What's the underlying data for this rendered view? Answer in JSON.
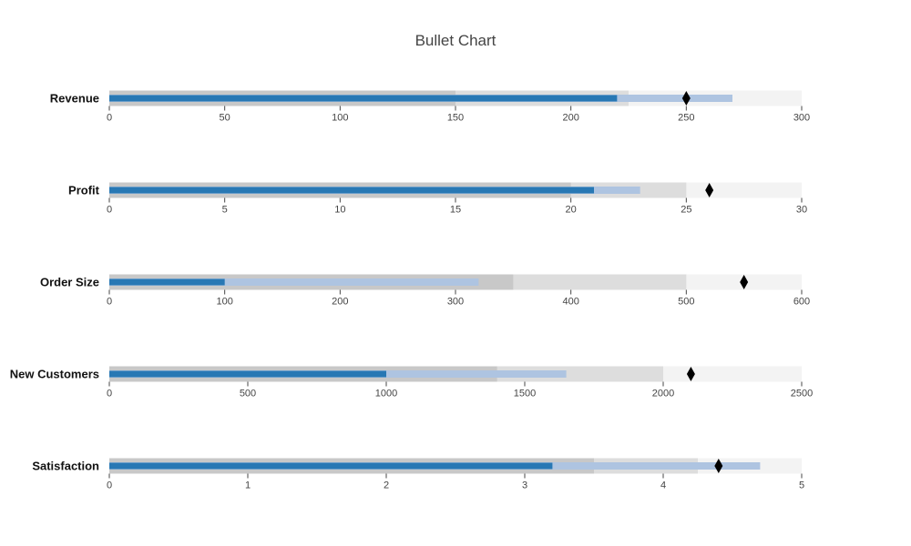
{
  "chart_data": {
    "type": "bullet",
    "title": "Bullet Chart",
    "colors": {
      "range_1": "#c8c8c8",
      "range_2": "#dddddd",
      "range_3": "#f3f3f3",
      "measure_projected": "#aec4e1",
      "measure_actual": "#2878b4",
      "marker": "#000000",
      "tick": "#444444"
    },
    "rows": [
      {
        "name": "Revenue",
        "ranges": [
          150,
          225,
          300
        ],
        "measures": [
          220,
          270
        ],
        "marker": 250,
        "domain": [
          0,
          300
        ],
        "ticks": [
          "0",
          "50",
          "100",
          "150",
          "200",
          "250",
          "300"
        ]
      },
      {
        "name": "Profit",
        "ranges": [
          20,
          25,
          30
        ],
        "measures": [
          21,
          23
        ],
        "marker": 26,
        "domain": [
          0,
          30
        ],
        "ticks": [
          "0",
          "5",
          "10",
          "15",
          "20",
          "25",
          "30"
        ]
      },
      {
        "name": "Order Size",
        "ranges": [
          350,
          500,
          600
        ],
        "measures": [
          100,
          320
        ],
        "marker": 550,
        "domain": [
          0,
          600
        ],
        "ticks": [
          "0",
          "100",
          "200",
          "300",
          "400",
          "500",
          "600"
        ]
      },
      {
        "name": "New Customers",
        "ranges": [
          1400,
          2000,
          2500
        ],
        "measures": [
          1000,
          1650
        ],
        "marker": 2100,
        "domain": [
          0,
          2500
        ],
        "ticks": [
          "0",
          "500",
          "1000",
          "1500",
          "2000",
          "2500"
        ]
      },
      {
        "name": "Satisfaction",
        "ranges": [
          3.5,
          4.25,
          5
        ],
        "measures": [
          3.2,
          4.7
        ],
        "marker": 4.4,
        "domain": [
          0,
          5
        ],
        "ticks": [
          "0",
          "1",
          "2",
          "3",
          "4",
          "5"
        ]
      }
    ]
  }
}
